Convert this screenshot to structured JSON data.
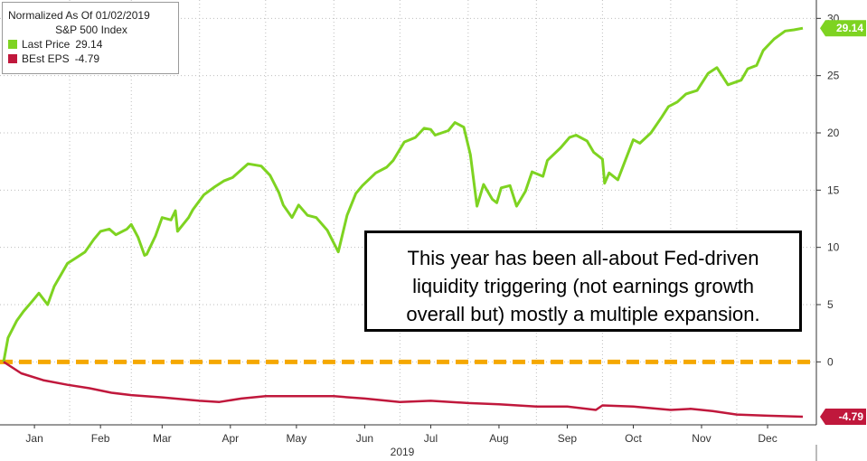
{
  "chart_data": {
    "type": "line",
    "legend": {
      "title": "Normalized As Of 01/02/2019",
      "subtitle": "S&P 500 Index",
      "placement": "top-left"
    },
    "xlabel": "2019",
    "x_ticks": [
      "Jan",
      "Feb",
      "Mar",
      "Apr",
      "May",
      "Jun",
      "Jul",
      "Aug",
      "Sep",
      "Oct",
      "Nov",
      "Dec"
    ],
    "y_ticks": [
      0,
      5,
      10,
      15,
      20,
      25,
      30
    ],
    "y_tick_labels": [
      "0",
      "5",
      "10",
      "15",
      "20",
      "25",
      "30"
    ],
    "ylim": [
      -5.5,
      30.5
    ],
    "y_axis_side": "right",
    "grid": true,
    "series": [
      {
        "name": "Last Price",
        "legend_label": "Last Price",
        "legend_value": "29.14",
        "last_label": "29.14",
        "color": "#7ed321",
        "x": [
          "2019-01-02",
          "2019-01-04",
          "2019-01-08",
          "2019-01-11",
          "2019-01-15",
          "2019-01-18",
          "2019-01-22",
          "2019-01-25",
          "2019-01-28",
          "2019-01-31",
          "2019-02-04",
          "2019-02-08",
          "2019-02-12",
          "2019-02-15",
          "2019-02-19",
          "2019-02-22",
          "2019-02-27",
          "2019-03-01",
          "2019-03-04",
          "2019-03-07",
          "2019-03-08",
          "2019-03-12",
          "2019-03-15",
          "2019-03-19",
          "2019-03-21",
          "2019-03-22",
          "2019-03-27",
          "2019-03-29",
          "2019-04-03",
          "2019-04-08",
          "2019-04-12",
          "2019-04-16",
          "2019-04-23",
          "2019-04-29",
          "2019-05-03",
          "2019-05-07",
          "2019-05-09",
          "2019-05-13",
          "2019-05-16",
          "2019-05-20",
          "2019-05-24",
          "2019-05-29",
          "2019-06-03",
          "2019-06-04",
          "2019-06-07",
          "2019-06-11",
          "2019-06-14",
          "2019-06-20",
          "2019-06-25",
          "2019-06-28",
          "2019-07-03",
          "2019-07-08",
          "2019-07-12",
          "2019-07-15",
          "2019-07-17",
          "2019-07-23",
          "2019-07-26",
          "2019-07-30",
          "2019-08-02",
          "2019-08-05",
          "2019-08-08",
          "2019-08-12",
          "2019-08-14",
          "2019-08-16",
          "2019-08-20",
          "2019-08-23",
          "2019-08-27",
          "2019-08-30",
          "2019-09-04",
          "2019-09-06",
          "2019-09-12",
          "2019-09-16",
          "2019-09-19",
          "2019-09-24",
          "2019-09-27",
          "2019-10-01",
          "2019-10-02",
          "2019-10-04",
          "2019-10-08",
          "2019-10-11",
          "2019-10-15",
          "2019-10-18",
          "2019-10-23",
          "2019-10-28",
          "2019-10-31",
          "2019-11-04",
          "2019-11-08",
          "2019-11-13",
          "2019-11-18",
          "2019-11-22",
          "2019-11-27",
          "2019-12-03",
          "2019-12-06",
          "2019-12-10",
          "2019-12-13",
          "2019-12-18",
          "2019-12-23",
          "2019-12-27",
          "2019-12-31"
        ],
        "values": [
          0,
          2.1,
          3.6,
          4.4,
          5.3,
          6.0,
          5.0,
          6.6,
          7.6,
          8.6,
          9.1,
          9.6,
          10.7,
          11.4,
          11.6,
          11.1,
          11.6,
          12.0,
          10.9,
          9.3,
          9.4,
          11.0,
          12.6,
          12.4,
          13.2,
          11.4,
          12.6,
          13.3,
          14.6,
          15.3,
          15.8,
          16.1,
          17.3,
          17.1,
          16.3,
          14.8,
          13.7,
          12.6,
          13.7,
          12.8,
          12.6,
          11.5,
          9.6,
          10.4,
          12.8,
          14.7,
          15.4,
          16.5,
          17.0,
          17.6,
          19.2,
          19.6,
          20.4,
          20.3,
          19.8,
          20.2,
          20.9,
          20.5,
          18.1,
          13.6,
          15.5,
          14.2,
          13.9,
          15.2,
          15.4,
          13.6,
          14.9,
          16.6,
          16.2,
          17.6,
          18.7,
          19.6,
          19.8,
          19.3,
          18.3,
          17.7,
          15.6,
          16.5,
          15.9,
          17.4,
          19.4,
          19.1,
          20.0,
          21.4,
          22.3,
          22.7,
          23.4,
          23.7,
          25.2,
          25.7,
          24.2,
          24.6,
          25.6,
          25.9,
          27.2,
          28.2,
          28.9,
          29.0,
          29.14
        ]
      },
      {
        "name": "BEst EPS",
        "legend_label": "BEst EPS",
        "legend_value": "-4.79",
        "last_label": "-4.79",
        "color": "#c0183c",
        "x": [
          "2019-01-02",
          "2019-01-10",
          "2019-01-20",
          "2019-01-31",
          "2019-02-10",
          "2019-02-20",
          "2019-03-01",
          "2019-03-15",
          "2019-04-01",
          "2019-04-10",
          "2019-04-20",
          "2019-05-01",
          "2019-05-15",
          "2019-06-01",
          "2019-06-15",
          "2019-07-01",
          "2019-07-15",
          "2019-08-01",
          "2019-08-15",
          "2019-09-01",
          "2019-09-15",
          "2019-09-28",
          "2019-10-01",
          "2019-10-15",
          "2019-11-01",
          "2019-11-10",
          "2019-11-20",
          "2019-12-01",
          "2019-12-15",
          "2019-12-31"
        ],
        "values": [
          0,
          -1.0,
          -1.6,
          -2.0,
          -2.3,
          -2.7,
          -2.9,
          -3.1,
          -3.4,
          -3.5,
          -3.2,
          -3.0,
          -3.0,
          -3.0,
          -3.2,
          -3.5,
          -3.4,
          -3.6,
          -3.7,
          -3.9,
          -3.9,
          -4.2,
          -3.8,
          -3.9,
          -4.2,
          -4.1,
          -4.3,
          -4.6,
          -4.7,
          -4.79
        ]
      }
    ],
    "reference_line": {
      "y": 0,
      "color": "#f5a800",
      "style": "dashed"
    }
  },
  "annotation": {
    "lines": [
      "This year has been all-about Fed-driven",
      "liquidity triggering (not earnings growth",
      "overall but) mostly a multiple expansion."
    ]
  }
}
